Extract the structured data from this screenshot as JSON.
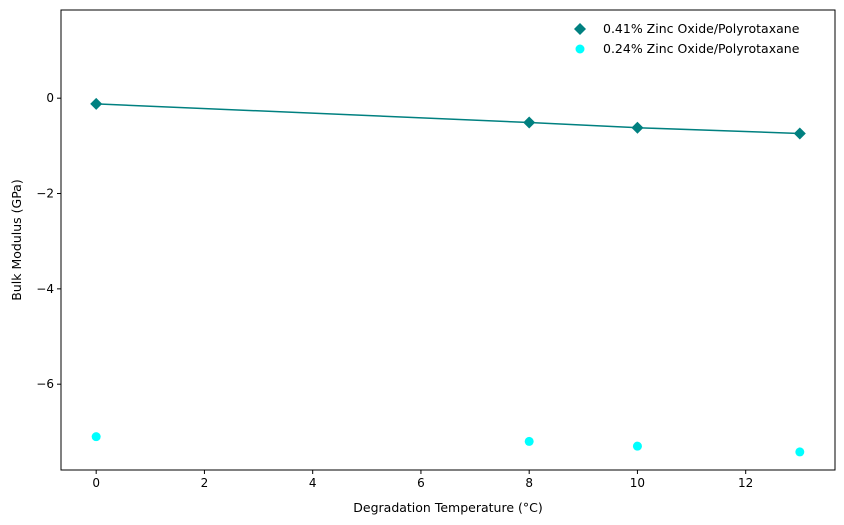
{
  "chart_data": {
    "type": "scatter",
    "xlabel": "Degradation Temperature (°C)",
    "ylabel": "Bulk Modulus (GPa)",
    "xlim": [
      -0.65,
      13.65
    ],
    "ylim": [
      -7.8,
      1.85
    ],
    "xticks": [
      0,
      2,
      4,
      6,
      8,
      10,
      12
    ],
    "yticks": [
      0,
      -2,
      -4,
      -6
    ],
    "ytick_labels": [
      "0",
      "−2",
      "−4",
      "−6"
    ],
    "grid": false,
    "legend_position": "top-right",
    "series": [
      {
        "name": "0.41% Zinc Oxide/Polyrotaxane",
        "marker": "diamond",
        "color": "#008080",
        "line": true,
        "x": [
          0,
          8,
          10,
          13
        ],
        "y": [
          -0.12,
          -0.51,
          -0.62,
          -0.74
        ]
      },
      {
        "name": "0.24% Zinc Oxide/Polyrotaxane",
        "marker": "circle",
        "color": "#00ffff",
        "line": false,
        "x": [
          0,
          8,
          10,
          13
        ],
        "y": [
          -7.1,
          -7.2,
          -7.3,
          -7.42
        ]
      }
    ]
  }
}
